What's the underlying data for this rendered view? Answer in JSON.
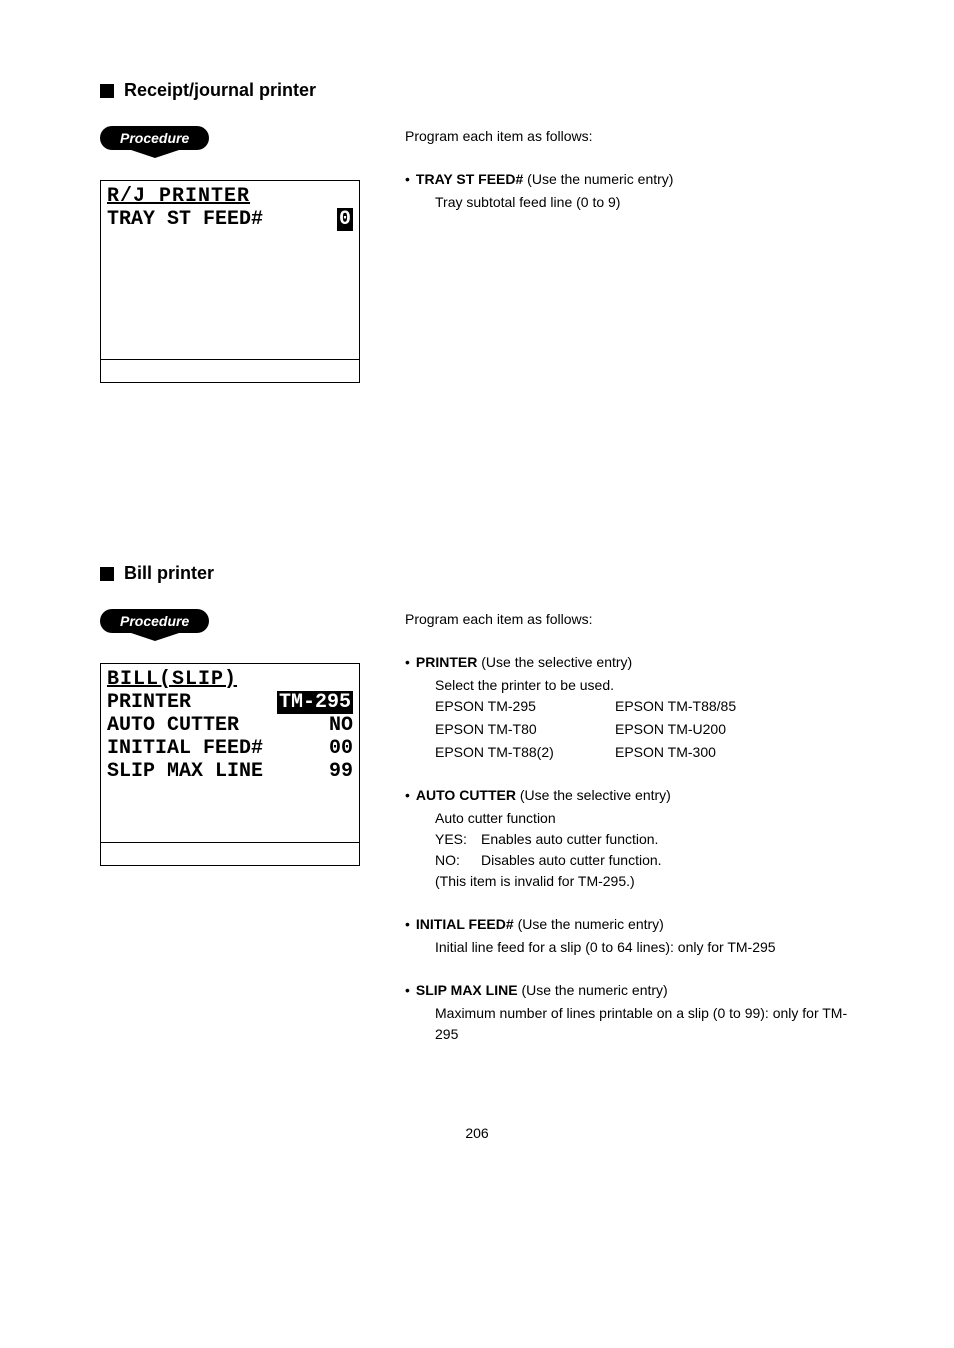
{
  "page_number": "206",
  "section1": {
    "title": "Receipt/journal printer",
    "procedure_label": "Procedure",
    "intro": "Program each item as follows:",
    "lcd": {
      "title": "R/J PRINTER",
      "rows": [
        {
          "label": "TRAY ST FEED#",
          "value": "0",
          "inverted": true
        }
      ]
    },
    "items": [
      {
        "name": "TRAY ST FEED#",
        "range": "(Use the numeric entry)",
        "lines": [
          "Tray subtotal feed line (0 to 9)"
        ]
      }
    ]
  },
  "section2": {
    "title": "Bill printer",
    "procedure_label": "Procedure",
    "intro": "Program each item as follows:",
    "lcd": {
      "title": "BILL(SLIP)",
      "rows": [
        {
          "label": "PRINTER",
          "value": "TM-295",
          "inverted": true
        },
        {
          "label": "AUTO CUTTER",
          "value": "NO",
          "inverted": false
        },
        {
          "label": "INITIAL FEED#",
          "value": "00",
          "inverted": false
        },
        {
          "label": "SLIP MAX LINE",
          "value": "99",
          "inverted": false
        }
      ]
    },
    "items": [
      {
        "name": "PRINTER",
        "range": "(Use the selective entry)",
        "type": "printer_select",
        "lead": "Select the printer to be used.",
        "options": [
          [
            "EPSON TM-295",
            "EPSON TM-T88/85"
          ],
          [
            "EPSON TM-T80",
            "EPSON TM-U200"
          ],
          [
            "EPSON TM-T88(2)",
            "EPSON TM-300"
          ]
        ]
      },
      {
        "name": "AUTO CUTTER",
        "range": "(Use the selective entry)",
        "type": "yesno",
        "lead": "Auto cutter function",
        "yes": "Enables auto cutter function.",
        "no": "Disables auto cutter function.",
        "note": "(This item is invalid for TM-295.)"
      },
      {
        "name": "INITIAL FEED#",
        "range": "(Use the numeric entry)",
        "lines": [
          "Initial line feed for a slip (0 to 64 lines): only for TM-295"
        ]
      },
      {
        "name": "SLIP MAX LINE",
        "range": "(Use the numeric entry)",
        "lines": [
          "Maximum number of lines printable on a slip (0 to 99): only for TM-295"
        ]
      }
    ]
  }
}
